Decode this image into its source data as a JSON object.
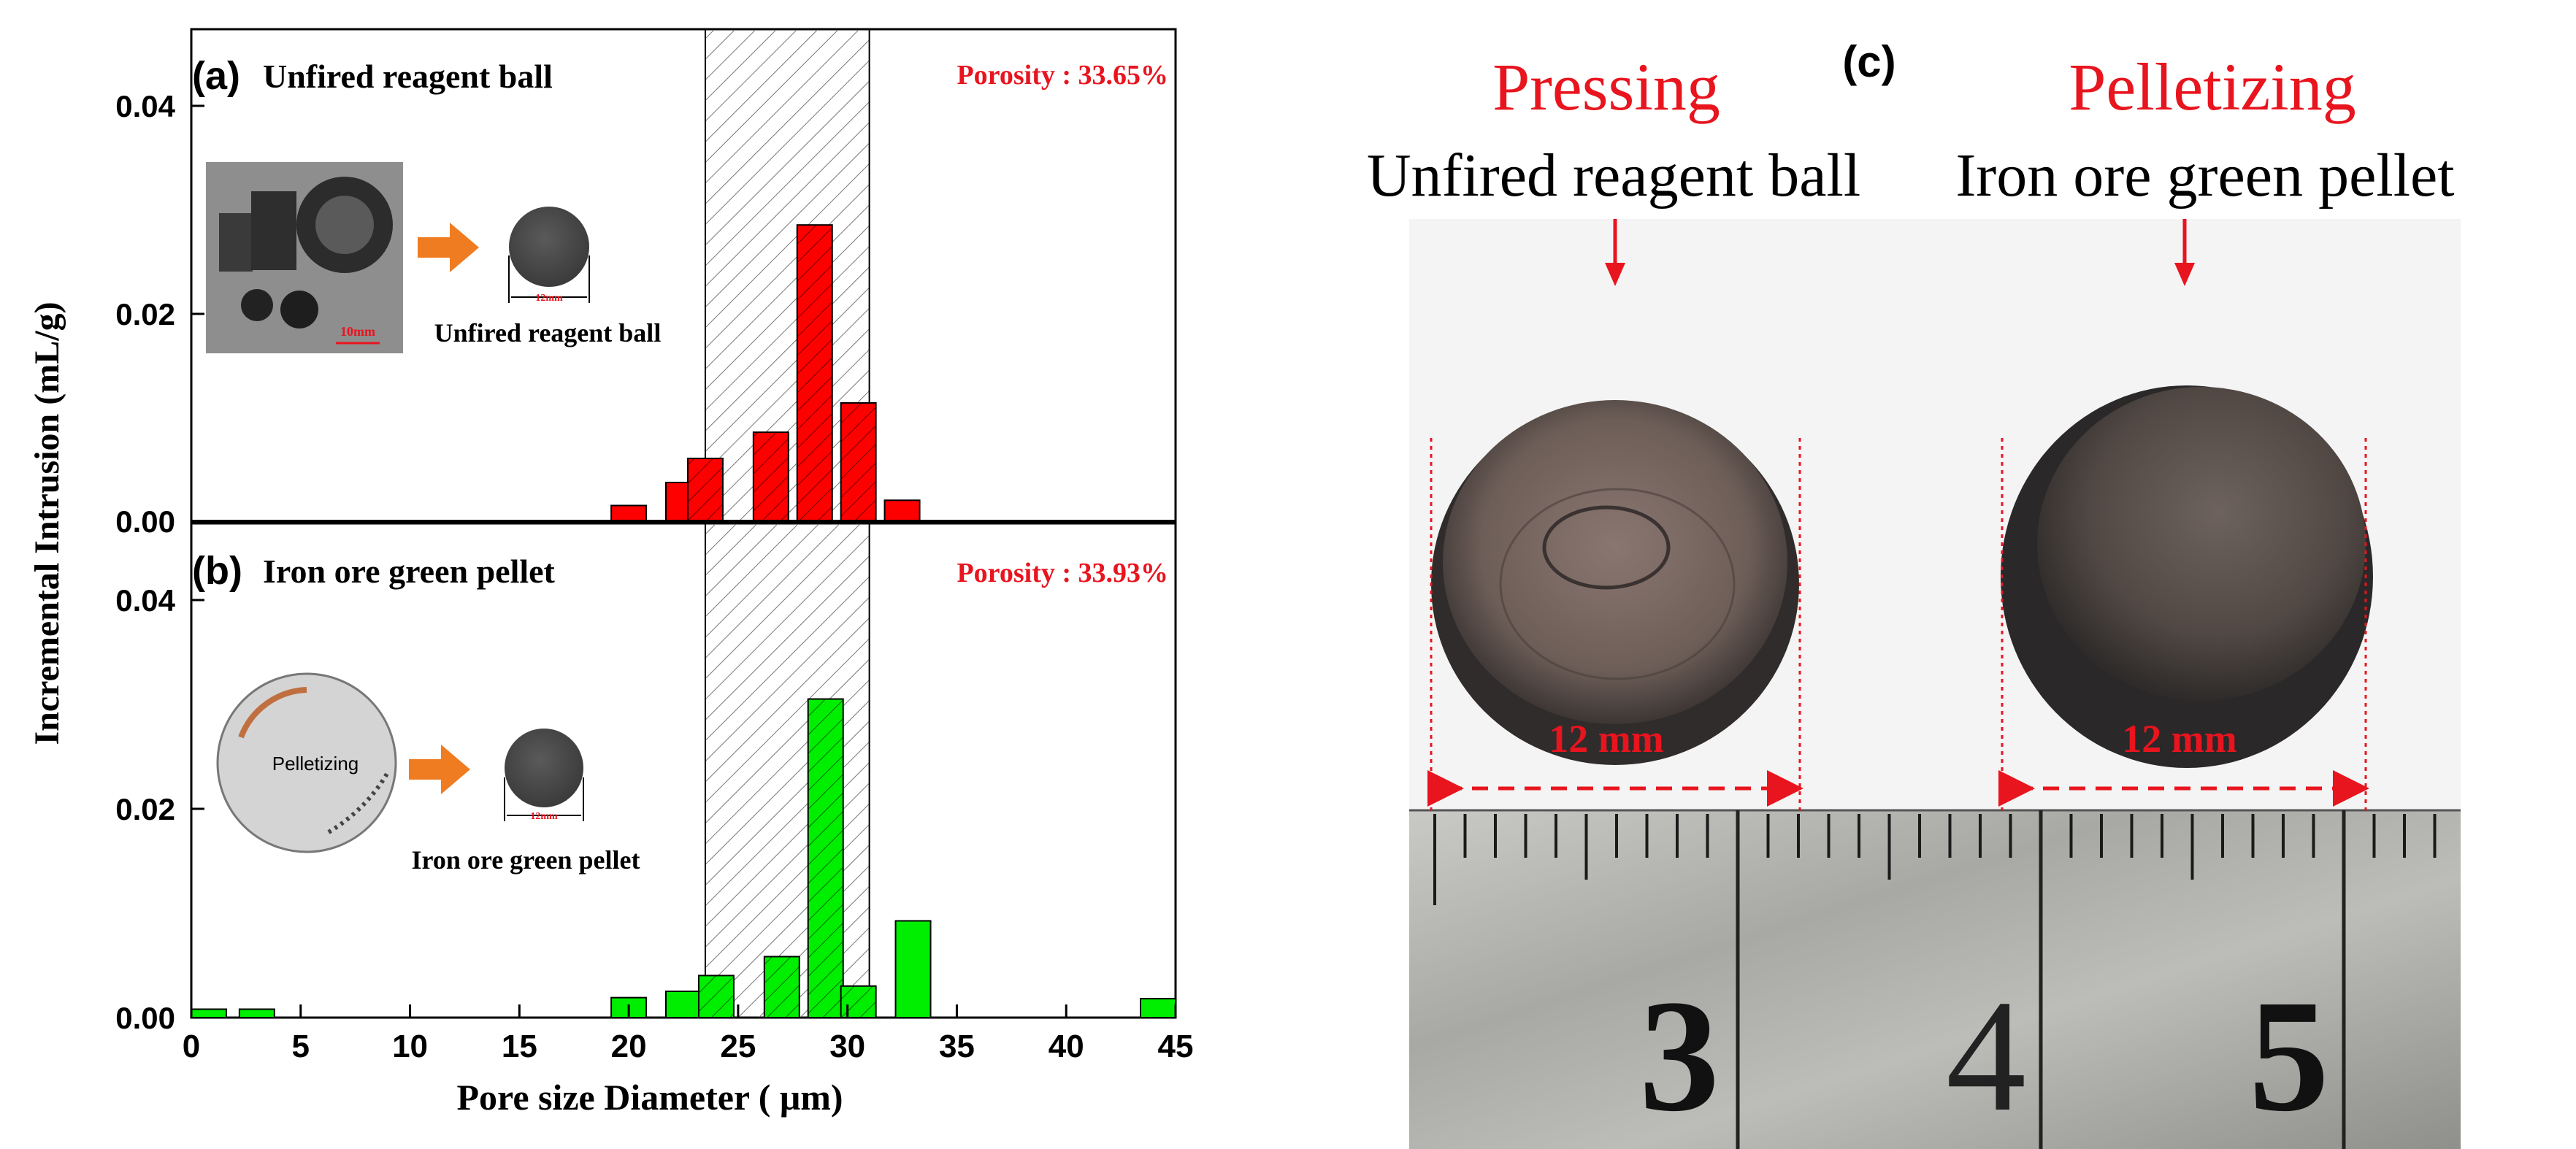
{
  "figure": {
    "chart_data": [
      {
        "type": "bar",
        "panel_label": "(a)",
        "title": "Unfired reagent ball",
        "annotation": "Porosity : 33.65%",
        "x": [
          20,
          22.5,
          23.5,
          26.5,
          28.5,
          30.5,
          32.5
        ],
        "values": [
          0.0015,
          0.0037,
          0.006,
          0.0085,
          0.0283,
          0.0113,
          0.002
        ],
        "bar_color": "#ff0000",
        "xlim": [
          0,
          45
        ],
        "ylim": [
          0,
          0.047
        ],
        "yticks": [
          "0.00",
          "0.02",
          "0.04"
        ],
        "highlight_range": [
          23.5,
          31
        ],
        "inset_scale_label": "10mm",
        "inset_size_label": "12mm",
        "inset_caption": "Unfired reagent ball"
      },
      {
        "type": "bar",
        "panel_label": "(b)",
        "title": "Iron ore green pellet",
        "annotation": "Porosity : 33.93%",
        "x": [
          0.5,
          3,
          20,
          22.5,
          24,
          27,
          29,
          30.5,
          33,
          45
        ],
        "values": [
          0.0008,
          0.0008,
          0.0019,
          0.0025,
          0.004,
          0.0058,
          0.0303,
          0.003,
          0.0092,
          0.0018
        ],
        "bar_color": "#00ee00",
        "xlim": [
          0,
          45
        ],
        "ylim": [
          0,
          0.047
        ],
        "yticks": [
          "0.00",
          "0.02",
          "0.04"
        ],
        "highlight_range": [
          23.5,
          31
        ],
        "inset_process_label": "Pelletizing",
        "inset_size_label": "12mm",
        "inset_caption": "Iron ore green pellet"
      }
    ],
    "shared_axes": {
      "ylabel": "Incremental Intrusion (mL/g)",
      "xlabel": "Pore size  Diameter ( μm)",
      "xticks": [
        "0",
        "5",
        "10",
        "15",
        "20",
        "25",
        "30",
        "35",
        "40",
        "45"
      ]
    },
    "photo": {
      "panel_label": "(c)",
      "left": {
        "process": "Pressing",
        "name": "Unfired reagent ball",
        "size": "12 mm"
      },
      "right": {
        "process": "Pelletizing",
        "name": "Iron ore green pellet",
        "size": "12 mm"
      },
      "ruler_numbers": [
        "3",
        "4",
        "5"
      ]
    },
    "colors": {
      "accent_red": "#e8141e",
      "bar_red": "#ff0000",
      "bar_green": "#00ee00"
    }
  }
}
